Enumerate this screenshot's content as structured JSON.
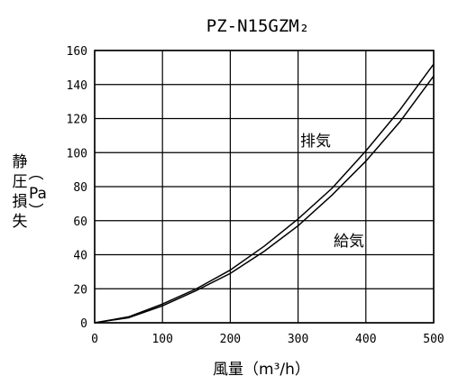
{
  "chart_data": {
    "type": "line",
    "title": "PZ-N15GZM₂",
    "xlabel": "風量（m³/h）",
    "ylabel_main": "静圧損失",
    "ylabel_unit": "Pa",
    "xlim": [
      0,
      500
    ],
    "ylim": [
      0,
      160
    ],
    "xticks": [
      "0",
      "100",
      "200",
      "300",
      "400",
      "500"
    ],
    "yticks": [
      "0",
      "20",
      "40",
      "60",
      "80",
      "100",
      "120",
      "140",
      "160"
    ],
    "grid": true,
    "series": [
      {
        "name": "排気",
        "x": [
          0,
          50,
          100,
          150,
          200,
          250,
          300,
          350,
          400,
          450,
          500
        ],
        "y": [
          0,
          3.5,
          11,
          20,
          31,
          45,
          61,
          79,
          101,
          125,
          152
        ]
      },
      {
        "name": "給気",
        "x": [
          0,
          50,
          100,
          150,
          200,
          250,
          300,
          350,
          400,
          450,
          500
        ],
        "y": [
          0,
          3,
          10,
          19,
          29,
          42,
          57,
          75,
          95,
          118,
          145
        ]
      }
    ]
  }
}
